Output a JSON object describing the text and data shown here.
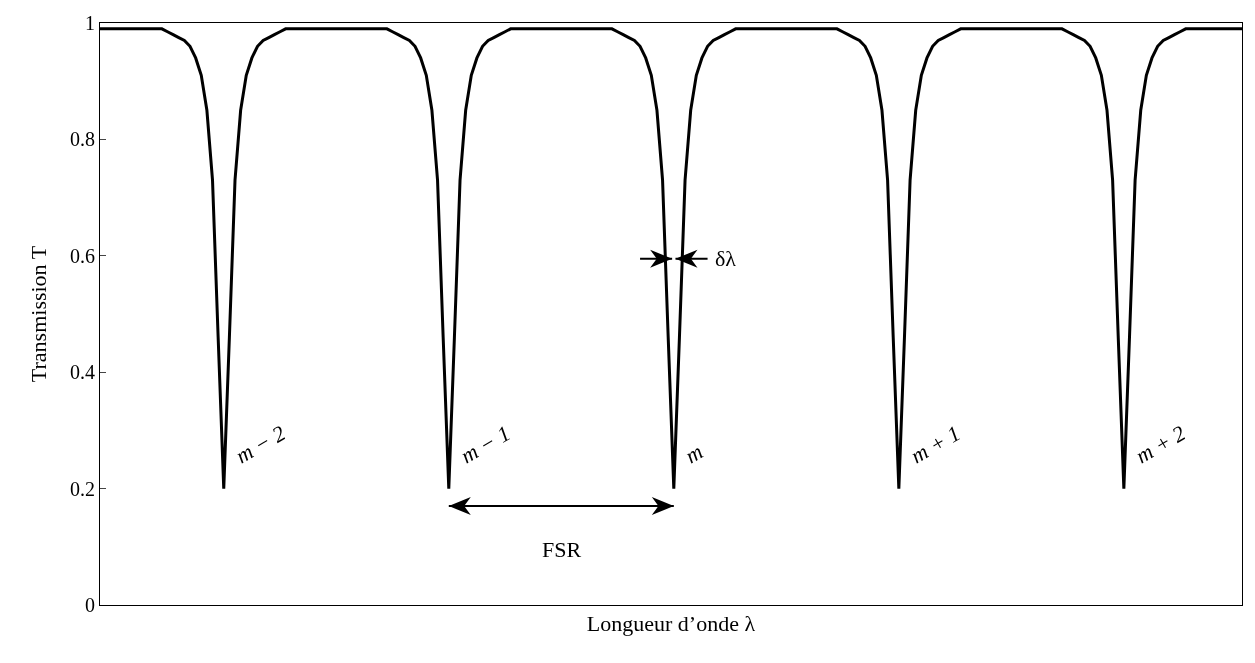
{
  "chart_data": {
    "type": "line",
    "xlabel": "Longueur d’onde λ",
    "ylabel": "Transmission T",
    "categories": [
      null,
      null,
      null,
      null,
      null,
      null,
      null,
      null,
      null,
      null,
      null,
      null,
      null,
      null,
      null,
      null,
      null,
      null,
      null,
      null,
      null,
      null,
      null,
      null,
      null,
      null,
      null,
      null,
      null,
      null,
      null,
      null,
      null,
      null,
      null,
      null,
      null,
      null,
      null,
      null,
      null,
      null,
      null,
      null,
      null,
      null,
      null,
      null,
      null,
      null,
      null,
      null,
      null,
      null,
      null,
      null,
      null,
      null,
      null,
      null,
      null,
      null,
      null,
      null,
      null,
      null,
      null,
      null,
      null,
      null,
      null,
      null,
      null,
      null,
      null,
      null,
      null,
      null,
      null,
      null,
      null,
      null,
      null,
      null,
      null,
      null,
      null,
      null,
      null,
      null,
      null,
      null,
      null,
      null,
      null,
      null,
      null,
      null,
      null,
      null,
      null,
      null,
      null,
      null,
      null,
      null,
      null,
      null,
      null,
      null,
      null,
      null,
      null,
      null,
      null,
      null,
      null,
      null,
      null,
      null,
      null,
      null,
      null,
      null,
      null,
      null,
      null,
      null,
      null,
      null,
      null,
      null,
      null,
      null,
      null,
      null,
      null,
      null,
      null,
      null,
      null,
      null,
      null,
      null,
      null,
      null,
      null,
      null,
      null,
      null,
      null,
      null,
      null,
      null,
      null,
      null,
      null,
      null,
      null,
      null,
      null,
      null,
      null,
      null,
      null,
      null,
      null,
      null,
      null,
      null,
      null,
      null,
      null,
      null,
      null,
      null,
      null,
      null,
      null,
      null,
      null,
      null,
      null,
      null,
      null,
      null,
      null,
      null,
      null,
      null,
      null,
      null,
      null,
      null,
      null,
      null,
      null,
      null,
      null,
      null,
      null,
      null,
      null,
      null
    ],
    "series": [
      {
        "color": "#000000",
        "values": [
          0.99,
          0.99,
          0.99,
          0.99,
          0.99,
          0.99,
          0.99,
          0.99,
          0.99,
          0.99,
          0.99,
          0.99,
          0.985,
          0.98,
          0.975,
          0.97,
          0.96,
          0.94,
          0.91,
          0.85,
          0.73,
          0.46,
          0.2,
          0.46,
          0.73,
          0.85,
          0.91,
          0.94,
          0.96,
          0.97,
          0.975,
          0.98,
          0.985,
          0.99,
          0.99,
          0.99,
          0.99,
          0.99,
          0.99,
          0.99,
          0.99,
          0.99,
          0.99,
          0.99,
          0.99,
          0.99,
          0.99,
          0.99,
          0.99,
          0.99,
          0.99,
          0.99,
          0.985,
          0.98,
          0.975,
          0.97,
          0.96,
          0.94,
          0.91,
          0.85,
          0.73,
          0.46,
          0.2,
          0.46,
          0.73,
          0.85,
          0.91,
          0.94,
          0.96,
          0.97,
          0.975,
          0.98,
          0.985,
          0.99,
          0.99,
          0.99,
          0.99,
          0.99,
          0.99,
          0.99,
          0.99,
          0.99,
          0.99,
          0.99,
          0.99,
          0.99,
          0.99,
          0.99,
          0.99,
          0.99,
          0.99,
          0.99,
          0.985,
          0.98,
          0.975,
          0.97,
          0.96,
          0.94,
          0.91,
          0.85,
          0.73,
          0.46,
          0.2,
          0.46,
          0.73,
          0.85,
          0.91,
          0.94,
          0.96,
          0.97,
          0.975,
          0.98,
          0.985,
          0.99,
          0.99,
          0.99,
          0.99,
          0.99,
          0.99,
          0.99,
          0.99,
          0.99,
          0.99,
          0.99,
          0.99,
          0.99,
          0.99,
          0.99,
          0.99,
          0.99,
          0.99,
          0.99,
          0.985,
          0.98,
          0.975,
          0.97,
          0.96,
          0.94,
          0.91,
          0.85,
          0.73,
          0.46,
          0.2,
          0.46,
          0.73,
          0.85,
          0.91,
          0.94,
          0.96,
          0.97,
          0.975,
          0.98,
          0.985,
          0.99,
          0.99,
          0.99,
          0.99,
          0.99,
          0.99,
          0.99,
          0.99,
          0.99,
          0.99,
          0.99,
          0.99,
          0.99,
          0.99,
          0.99,
          0.99,
          0.99,
          0.99,
          0.99,
          0.985,
          0.98,
          0.975,
          0.97,
          0.96,
          0.94,
          0.91,
          0.85,
          0.73,
          0.46,
          0.2,
          0.46,
          0.73,
          0.85,
          0.91,
          0.94,
          0.96,
          0.97,
          0.975,
          0.98,
          0.985,
          0.99,
          0.99,
          0.99,
          0.99,
          0.99,
          0.99,
          0.99,
          0.99,
          0.99,
          0.99,
          0.99
        ]
      }
    ],
    "ylim": [
      0,
      1
    ],
    "yticks": [
      0,
      0.2,
      0.4,
      0.6,
      0.8,
      1
    ],
    "grid": false,
    "tick_labels": "y",
    "marker": "none",
    "line_style": "solid",
    "annotations": [
      "m − 2",
      "m − 1",
      "m",
      "m + 1",
      "m + 2",
      "FSR",
      "δλ"
    ]
  }
}
